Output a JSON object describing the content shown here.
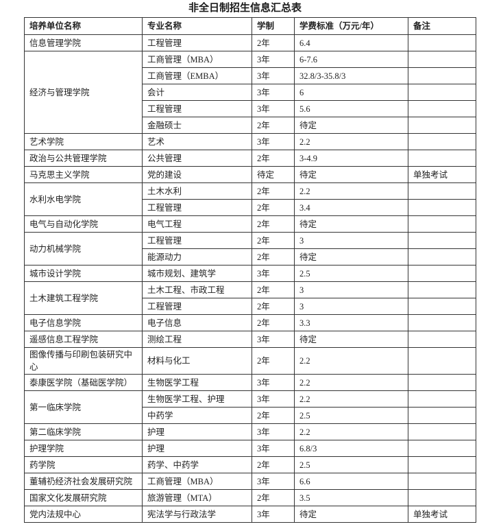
{
  "title": "非全日制招生信息汇总表",
  "table": {
    "headers": [
      "培养单位名称",
      "专业名称",
      "学制",
      "学费标准（万元/年）",
      "备注"
    ],
    "groups": [
      {
        "unit": "信息管理学院",
        "rows": [
          [
            "工程管理",
            "2年",
            "6.4",
            ""
          ]
        ]
      },
      {
        "unit": "经济与管理学院",
        "rows": [
          [
            "工商管理（MBA）",
            "3年",
            "6-7.6",
            ""
          ],
          [
            "工商管理（EMBA）",
            "3年",
            "32.8/3-35.8/3",
            ""
          ],
          [
            "会计",
            "3年",
            "6",
            ""
          ],
          [
            "工程管理",
            "3年",
            "5.6",
            ""
          ],
          [
            "金融硕士",
            "2年",
            "待定",
            ""
          ]
        ]
      },
      {
        "unit": "艺术学院",
        "rows": [
          [
            "艺术",
            "3年",
            "2.2",
            ""
          ]
        ]
      },
      {
        "unit": "政治与公共管理学院",
        "rows": [
          [
            "公共管理",
            "2年",
            "3-4.9",
            ""
          ]
        ]
      },
      {
        "unit": "马克思主义学院",
        "rows": [
          [
            "党的建设",
            "待定",
            "待定",
            "单独考试"
          ]
        ]
      },
      {
        "unit": "水利水电学院",
        "rows": [
          [
            "土木水利",
            "2年",
            "2.2",
            ""
          ],
          [
            "工程管理",
            "2年",
            "3.4",
            ""
          ]
        ]
      },
      {
        "unit": "电气与自动化学院",
        "rows": [
          [
            "电气工程",
            "2年",
            "待定",
            ""
          ]
        ]
      },
      {
        "unit": "动力机械学院",
        "rows": [
          [
            "工程管理",
            "2年",
            "3",
            ""
          ],
          [
            "能源动力",
            "2年",
            "待定",
            ""
          ]
        ]
      },
      {
        "unit": "城市设计学院",
        "rows": [
          [
            "城市规划、建筑学",
            "3年",
            "2.5",
            ""
          ]
        ]
      },
      {
        "unit": "土木建筑工程学院",
        "rows": [
          [
            "土木工程、市政工程",
            "2年",
            "3",
            ""
          ],
          [
            "工程管理",
            "2年",
            "3",
            ""
          ]
        ]
      },
      {
        "unit": "电子信息学院",
        "rows": [
          [
            "电子信息",
            "2年",
            "3.3",
            ""
          ]
        ]
      },
      {
        "unit": "遥感信息工程学院",
        "rows": [
          [
            "测绘工程",
            "3年",
            "待定",
            ""
          ]
        ]
      },
      {
        "unit": "图像传播与印刷包装研究中心",
        "rows": [
          [
            "材料与化工",
            "2年",
            "2.2",
            ""
          ]
        ]
      },
      {
        "unit": "泰康医学院（基础医学院）",
        "rows": [
          [
            "生物医学工程",
            "3年",
            "2.2",
            ""
          ]
        ]
      },
      {
        "unit": "第一临床学院",
        "rows": [
          [
            "生物医学工程、护理",
            "3年",
            "2.2",
            ""
          ],
          [
            "中药学",
            "2年",
            "2.5",
            ""
          ]
        ]
      },
      {
        "unit": "第二临床学院",
        "rows": [
          [
            "护理",
            "3年",
            "2.2",
            ""
          ]
        ]
      },
      {
        "unit": "护理学院",
        "rows": [
          [
            "护理",
            "3年",
            "6.8/3",
            ""
          ]
        ]
      },
      {
        "unit": "药学院",
        "rows": [
          [
            "药学、中药学",
            "2年",
            "2.5",
            ""
          ]
        ]
      },
      {
        "unit": "董辅礽经济社会发展研究院",
        "rows": [
          [
            "工商管理（MBA）",
            "3年",
            "6.6",
            ""
          ]
        ]
      },
      {
        "unit": "国家文化发展研究院",
        "rows": [
          [
            "旅游管理（MTA）",
            "2年",
            "3.5",
            ""
          ]
        ]
      },
      {
        "unit": "党内法规中心",
        "rows": [
          [
            "宪法学与行政法学",
            "3年",
            "待定",
            "单独考试"
          ]
        ]
      }
    ]
  }
}
